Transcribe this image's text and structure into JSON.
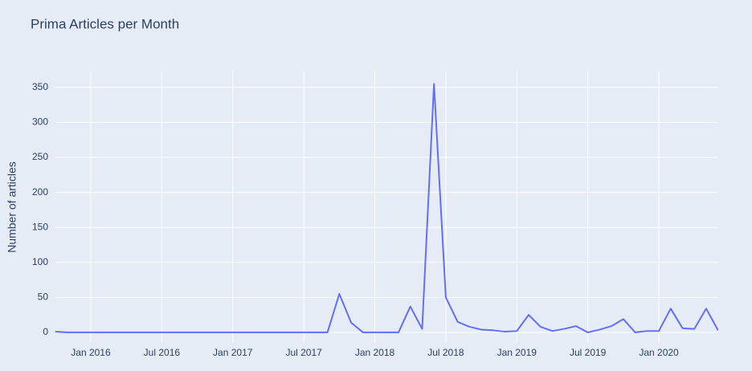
{
  "chart_data": {
    "type": "line",
    "title": "Prima Articles per Month",
    "y_label": "Number of articles",
    "x": [
      "2015-10",
      "2015-11",
      "2015-12",
      "2016-01",
      "2016-02",
      "2016-03",
      "2016-04",
      "2016-05",
      "2016-06",
      "2016-07",
      "2016-08",
      "2016-09",
      "2016-10",
      "2016-11",
      "2016-12",
      "2017-01",
      "2017-02",
      "2017-03",
      "2017-04",
      "2017-05",
      "2017-06",
      "2017-07",
      "2017-08",
      "2017-09",
      "2017-10",
      "2017-11",
      "2017-12",
      "2018-01",
      "2018-02",
      "2018-03",
      "2018-04",
      "2018-05",
      "2018-06",
      "2018-07",
      "2018-08",
      "2018-09",
      "2018-10",
      "2018-11",
      "2018-12",
      "2019-01",
      "2019-02",
      "2019-03",
      "2019-04",
      "2019-05",
      "2019-06",
      "2019-07",
      "2019-08",
      "2019-09",
      "2019-10",
      "2019-11",
      "2019-12",
      "2020-01",
      "2020-02",
      "2020-03",
      "2020-04",
      "2020-05",
      "2020-06"
    ],
    "series": [
      {
        "color": "#636efa",
        "values": [
          1,
          0,
          0,
          0,
          0,
          0,
          0,
          0,
          0,
          0,
          0,
          0,
          0,
          0,
          0,
          0,
          0,
          0,
          0,
          0,
          0,
          0,
          0,
          0,
          55,
          14,
          0,
          0,
          0,
          0,
          37,
          5,
          355,
          50,
          15,
          8,
          4,
          3,
          1,
          2,
          25,
          8,
          2,
          5,
          9,
          0,
          4,
          9,
          19,
          0,
          2,
          2,
          34,
          6,
          5,
          34,
          3
        ]
      }
    ],
    "xlim": [
      "2015-10",
      "2020-06"
    ],
    "xticks": [
      {
        "value": "2016-01",
        "label": "Jan 2016"
      },
      {
        "value": "2016-07",
        "label": "Jul 2016"
      },
      {
        "value": "2017-01",
        "label": "Jan 2017"
      },
      {
        "value": "2017-07",
        "label": "Jul 2017"
      },
      {
        "value": "2018-01",
        "label": "Jan 2018"
      },
      {
        "value": "2018-07",
        "label": "Jul 2018"
      },
      {
        "value": "2019-01",
        "label": "Jan 2019"
      },
      {
        "value": "2019-07",
        "label": "Jul 2019"
      },
      {
        "value": "2020-01",
        "label": "Jan 2020"
      }
    ],
    "ylim": [
      -15,
      374
    ],
    "yticks": [
      0,
      50,
      100,
      150,
      200,
      250,
      300,
      350
    ],
    "grid": true
  }
}
